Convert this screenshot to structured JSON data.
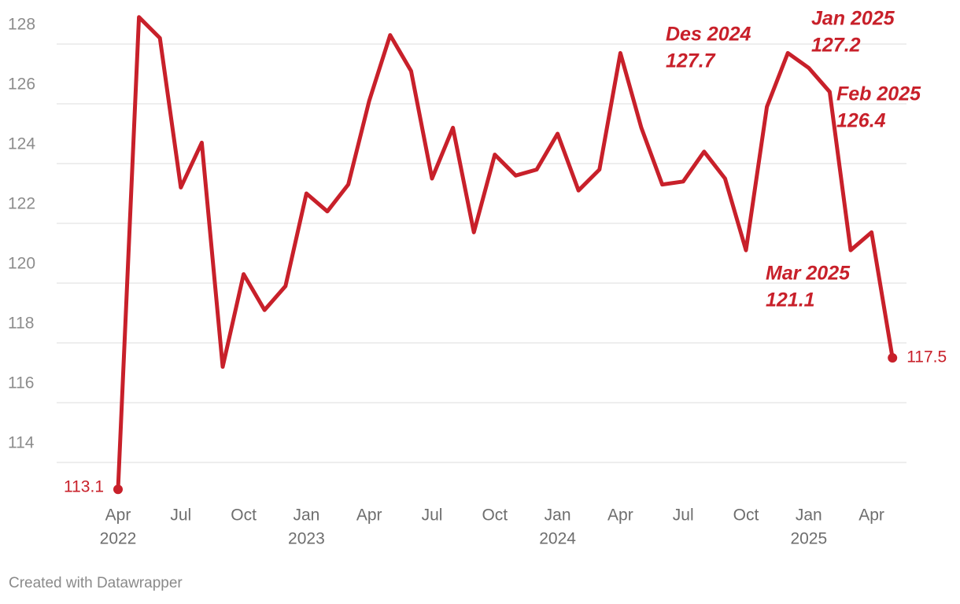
{
  "chart_data": {
    "type": "line",
    "title": "",
    "xlabel": "",
    "ylabel": "",
    "ylim": [
      113,
      129
    ],
    "y_ticks": [
      114,
      116,
      118,
      120,
      122,
      124,
      126,
      128
    ],
    "grid": true,
    "legend": "none",
    "line_color": "#c8202a",
    "x": [
      "2022-04",
      "2022-05",
      "2022-06",
      "2022-07",
      "2022-08",
      "2022-09",
      "2022-10",
      "2022-11",
      "2022-12",
      "2023-01",
      "2023-02",
      "2023-03",
      "2023-04",
      "2023-05",
      "2023-06",
      "2023-07",
      "2023-08",
      "2023-09",
      "2023-10",
      "2023-11",
      "2023-12",
      "2024-01",
      "2024-02",
      "2024-03",
      "2024-04",
      "2024-05",
      "2024-06",
      "2024-07",
      "2024-08",
      "2024-09",
      "2024-10",
      "2024-11",
      "2024-12",
      "2025-01",
      "2025-02",
      "2025-03",
      "2025-04",
      "2025-05"
    ],
    "values": [
      113.1,
      128.9,
      128.2,
      123.2,
      124.7,
      117.2,
      120.3,
      119.1,
      119.9,
      123.0,
      122.4,
      123.3,
      126.1,
      128.3,
      127.1,
      123.5,
      125.2,
      121.7,
      124.3,
      123.6,
      123.8,
      125.0,
      123.1,
      123.8,
      127.7,
      125.2,
      123.3,
      123.4,
      124.4,
      123.5,
      121.1,
      125.9,
      127.7,
      127.2,
      126.4,
      121.1,
      121.7,
      117.5
    ],
    "x_ticks": [
      {
        "at": "2022-04",
        "label": "Apr",
        "year": "2022"
      },
      {
        "at": "2022-07",
        "label": "Jul",
        "year": ""
      },
      {
        "at": "2022-10",
        "label": "Oct",
        "year": ""
      },
      {
        "at": "2023-01",
        "label": "Jan",
        "year": "2023"
      },
      {
        "at": "2023-04",
        "label": "Apr",
        "year": ""
      },
      {
        "at": "2023-07",
        "label": "Jul",
        "year": ""
      },
      {
        "at": "2023-10",
        "label": "Oct",
        "year": ""
      },
      {
        "at": "2024-01",
        "label": "Jan",
        "year": "2024"
      },
      {
        "at": "2024-04",
        "label": "Apr",
        "year": ""
      },
      {
        "at": "2024-07",
        "label": "Jul",
        "year": ""
      },
      {
        "at": "2024-10",
        "label": "Oct",
        "year": ""
      },
      {
        "at": "2025-01",
        "label": "Jan",
        "year": "2025"
      },
      {
        "at": "2025-04",
        "label": "Apr",
        "year": ""
      }
    ],
    "start_label": "113.1",
    "end_label": "117.5",
    "annotations": [
      {
        "month": "Des 2024",
        "value": "127.7"
      },
      {
        "month": "Jan 2025",
        "value": "127.2"
      },
      {
        "month": "Feb 2025",
        "value": "126.4"
      },
      {
        "month": "Mar 2025",
        "value": "121.1"
      }
    ]
  },
  "footer": {
    "credit": "Created with Datawrapper"
  }
}
